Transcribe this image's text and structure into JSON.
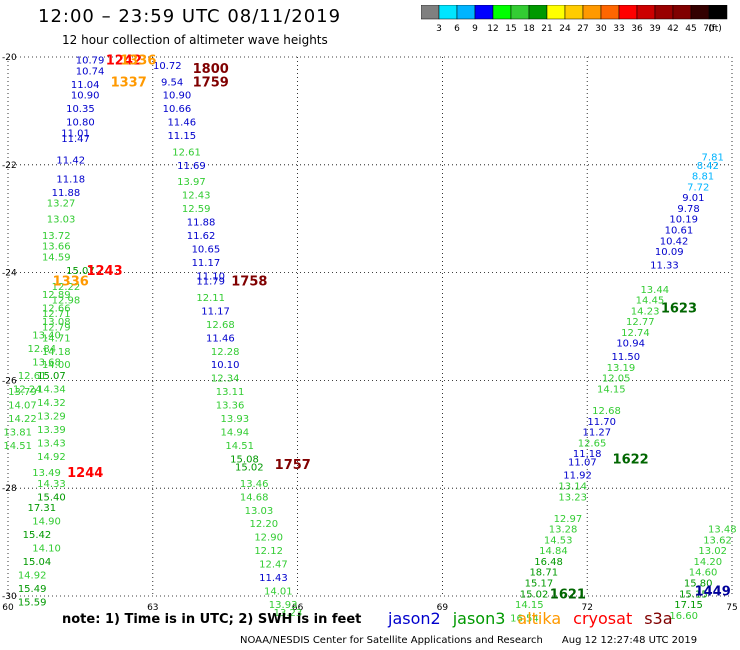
{
  "header": {
    "title": "12:00 – 23:59 UTC 08/11/2019",
    "subtitle": "12 hour collection of altimeter wave heights"
  },
  "colorbar": {
    "labels": [
      "3",
      "6",
      "9",
      "12",
      "15",
      "18",
      "21",
      "24",
      "27",
      "30",
      "33",
      "36",
      "39",
      "42",
      "45",
      "70"
    ],
    "unit": "(ft)",
    "colors": [
      "#808080",
      "#00e5ff",
      "#00b4ff",
      "#0000ff",
      "#00ff00",
      "#33cc33",
      "#009900",
      "#ffff00",
      "#ffcc00",
      "#ff9900",
      "#ff6600",
      "#ff0000",
      "#cc0000",
      "#990000",
      "#800000",
      "#330000",
      "#000000"
    ]
  },
  "map": {
    "lat_labels": [
      "-20",
      "-22",
      "-24",
      "-26",
      "-28",
      "-30"
    ],
    "lon_labels": [
      "60",
      "63",
      "66",
      "69",
      "72",
      "75"
    ],
    "lat_range": [
      -30,
      -20
    ],
    "lon_range": [
      60,
      75
    ],
    "grid_style": "dotted"
  },
  "pass_labels": [
    {
      "text": "1242",
      "lon": 62.4,
      "lat": -20.05,
      "color": "#ff0000"
    },
    {
      "text": "1336",
      "lon": 62.7,
      "lat": -20.05,
      "color": "#ff9900"
    },
    {
      "text": "1800",
      "lon": 64.2,
      "lat": -20.2,
      "color": "#800000"
    },
    {
      "text": "1337",
      "lon": 62.5,
      "lat": -20.45,
      "color": "#ff9900"
    },
    {
      "text": "1759",
      "lon": 64.2,
      "lat": -20.45,
      "color": "#800000"
    },
    {
      "text": "1243",
      "lon": 62.0,
      "lat": -23.95,
      "color": "#ff0000"
    },
    {
      "text": "1336",
      "lon": 61.3,
      "lat": -24.15,
      "color": "#ff9900"
    },
    {
      "text": "1758",
      "lon": 65.0,
      "lat": -24.15,
      "color": "#800000"
    },
    {
      "text": "1244",
      "lon": 61.6,
      "lat": -27.7,
      "color": "#ff0000"
    },
    {
      "text": "1757",
      "lon": 65.9,
      "lat": -27.55,
      "color": "#800000"
    },
    {
      "text": "1623",
      "lon": 73.9,
      "lat": -24.65,
      "color": "#006600"
    },
    {
      "text": "1622",
      "lon": 72.9,
      "lat": -27.45,
      "color": "#006600"
    },
    {
      "text": "1621",
      "lon": 71.6,
      "lat": -29.95,
      "color": "#006600"
    },
    {
      "text": "1449",
      "lon": 74.6,
      "lat": -29.9,
      "color": "#000099"
    }
  ],
  "wave_heights": [
    {
      "v": "10.79",
      "lon": 61.7,
      "lat": -20.05,
      "color": "#0000cc"
    },
    {
      "v": "10.74",
      "lon": 61.7,
      "lat": -20.25,
      "color": "#0000cc"
    },
    {
      "v": "11.04",
      "lon": 61.6,
      "lat": -20.5,
      "color": "#0000cc"
    },
    {
      "v": "10.90",
      "lon": 61.6,
      "lat": -20.7,
      "color": "#0000cc"
    },
    {
      "v": "10.35",
      "lon": 61.5,
      "lat": -20.95,
      "color": "#0000cc"
    },
    {
      "v": "10.80",
      "lon": 61.5,
      "lat": -21.2,
      "color": "#0000cc"
    },
    {
      "v": "11.01",
      "lon": 61.4,
      "lat": -21.4,
      "color": "#0000cc"
    },
    {
      "v": "11.47",
      "lon": 61.4,
      "lat": -21.5,
      "color": "#0000cc"
    },
    {
      "v": "11.42",
      "lon": 61.3,
      "lat": -21.9,
      "color": "#0000cc"
    },
    {
      "v": "11.18",
      "lon": 61.3,
      "lat": -22.25,
      "color": "#0000cc"
    },
    {
      "v": "11.88",
      "lon": 61.2,
      "lat": -22.5,
      "color": "#0000cc"
    },
    {
      "v": "13.27",
      "lon": 61.1,
      "lat": -22.7,
      "color": "#33cc33"
    },
    {
      "v": "13.03",
      "lon": 61.1,
      "lat": -23.0,
      "color": "#33cc33"
    },
    {
      "v": "13.72",
      "lon": 61.0,
      "lat": -23.3,
      "color": "#33cc33"
    },
    {
      "v": "13.66",
      "lon": 61.0,
      "lat": -23.5,
      "color": "#33cc33"
    },
    {
      "v": "14.59",
      "lon": 61.0,
      "lat": -23.7,
      "color": "#33cc33"
    },
    {
      "v": "15.07",
      "lon": 61.5,
      "lat": -23.95,
      "color": "#009900"
    },
    {
      "v": "12.22",
      "lon": 61.2,
      "lat": -24.25,
      "color": "#33cc33"
    },
    {
      "v": "12.98",
      "lon": 61.2,
      "lat": -24.5,
      "color": "#33cc33"
    },
    {
      "v": "12.71",
      "lon": 61.0,
      "lat": -24.75,
      "color": "#33cc33"
    },
    {
      "v": "12.79",
      "lon": 61.0,
      "lat": -25.0,
      "color": "#33cc33"
    },
    {
      "v": "14.71",
      "lon": 61.0,
      "lat": -25.2,
      "color": "#33cc33"
    },
    {
      "v": "14.18",
      "lon": 61.0,
      "lat": -25.45,
      "color": "#33cc33"
    },
    {
      "v": "14.00",
      "lon": 61.0,
      "lat": -25.7,
      "color": "#33cc33"
    },
    {
      "v": "15.07",
      "lon": 60.9,
      "lat": -25.9,
      "color": "#009900"
    },
    {
      "v": "14.34",
      "lon": 60.9,
      "lat": -26.15,
      "color": "#33cc33"
    },
    {
      "v": "14.32",
      "lon": 60.9,
      "lat": -26.4,
      "color": "#33cc33"
    },
    {
      "v": "13.29",
      "lon": 60.9,
      "lat": -26.65,
      "color": "#33cc33"
    },
    {
      "v": "13.39",
      "lon": 60.9,
      "lat": -26.9,
      "color": "#33cc33"
    },
    {
      "v": "13.43",
      "lon": 60.9,
      "lat": -27.15,
      "color": "#33cc33"
    },
    {
      "v": "14.92",
      "lon": 60.9,
      "lat": -27.4,
      "color": "#33cc33"
    },
    {
      "v": "14.33",
      "lon": 60.9,
      "lat": -27.9,
      "color": "#33cc33"
    },
    {
      "v": "15.40",
      "lon": 60.9,
      "lat": -28.15,
      "color": "#009900"
    },
    {
      "v": "14.90",
      "lon": 60.8,
      "lat": -28.6,
      "color": "#33cc33"
    },
    {
      "v": "14.10",
      "lon": 60.8,
      "lat": -29.1,
      "color": "#33cc33"
    },
    {
      "v": "13.79",
      "lon": 60.3,
      "lat": -26.2,
      "color": "#33cc33"
    },
    {
      "v": "14.07",
      "lon": 60.3,
      "lat": -26.45,
      "color": "#33cc33"
    },
    {
      "v": "14.22",
      "lon": 60.3,
      "lat": -26.7,
      "color": "#33cc33"
    },
    {
      "v": "13.81",
      "lon": 60.2,
      "lat": -26.95,
      "color": "#33cc33"
    },
    {
      "v": "14.51",
      "lon": 60.2,
      "lat": -27.2,
      "color": "#33cc33"
    },
    {
      "v": "13.49",
      "lon": 60.8,
      "lat": -27.7,
      "color": "#33cc33"
    },
    {
      "v": "17.31",
      "lon": 60.7,
      "lat": -28.35,
      "color": "#009900"
    },
    {
      "v": "15.42",
      "lon": 60.6,
      "lat": -28.85,
      "color": "#009900"
    },
    {
      "v": "15.04",
      "lon": 60.6,
      "lat": -29.35,
      "color": "#009900"
    },
    {
      "v": "14.92",
      "lon": 60.5,
      "lat": -29.6,
      "color": "#33cc33"
    },
    {
      "v": "15.49",
      "lon": 60.5,
      "lat": -29.85,
      "color": "#009900"
    },
    {
      "v": "15.59",
      "lon": 60.5,
      "lat": -30.1,
      "color": "#009900"
    },
    {
      "v": "12.61",
      "lon": 60.5,
      "lat": -25.9,
      "color": "#33cc33"
    },
    {
      "v": "12.24",
      "lon": 60.4,
      "lat": -26.15,
      "color": "#33cc33"
    },
    {
      "v": "13.40",
      "lon": 60.8,
      "lat": -25.15,
      "color": "#33cc33"
    },
    {
      "v": "12.84",
      "lon": 60.7,
      "lat": -25.4,
      "color": "#33cc33"
    },
    {
      "v": "13.68",
      "lon": 60.8,
      "lat": -25.65,
      "color": "#33cc33"
    },
    {
      "v": "13.08",
      "lon": 61.0,
      "lat": -24.9,
      "color": "#33cc33"
    },
    {
      "v": "12.66",
      "lon": 61.0,
      "lat": -24.65,
      "color": "#33cc33"
    },
    {
      "v": "12.89",
      "lon": 61.0,
      "lat": -24.4,
      "color": "#33cc33"
    },
    {
      "v": "10.72",
      "lon": 63.3,
      "lat": -20.15,
      "color": "#0000cc"
    },
    {
      "v": "9.54",
      "lon": 63.4,
      "lat": -20.45,
      "color": "#0000cc"
    },
    {
      "v": "10.90",
      "lon": 63.5,
      "lat": -20.7,
      "color": "#0000cc"
    },
    {
      "v": "10.66",
      "lon": 63.5,
      "lat": -20.95,
      "color": "#0000cc"
    },
    {
      "v": "11.46",
      "lon": 63.6,
      "lat": -21.2,
      "color": "#0000cc"
    },
    {
      "v": "11.15",
      "lon": 63.6,
      "lat": -21.45,
      "color": "#0000cc"
    },
    {
      "v": "12.61",
      "lon": 63.7,
      "lat": -21.75,
      "color": "#33cc33"
    },
    {
      "v": "11.69",
      "lon": 63.8,
      "lat": -22.0,
      "color": "#0000cc"
    },
    {
      "v": "13.97",
      "lon": 63.8,
      "lat": -22.3,
      "color": "#33cc33"
    },
    {
      "v": "12.43",
      "lon": 63.9,
      "lat": -22.55,
      "color": "#33cc33"
    },
    {
      "v": "12.59",
      "lon": 63.9,
      "lat": -22.8,
      "color": "#33cc33"
    },
    {
      "v": "11.88",
      "lon": 64.0,
      "lat": -23.05,
      "color": "#0000cc"
    },
    {
      "v": "11.62",
      "lon": 64.0,
      "lat": -23.3,
      "color": "#0000cc"
    },
    {
      "v": "10.65",
      "lon": 64.1,
      "lat": -23.55,
      "color": "#0000cc"
    },
    {
      "v": "11.17",
      "lon": 64.1,
      "lat": -23.8,
      "color": "#0000cc"
    },
    {
      "v": "11.10",
      "lon": 64.2,
      "lat": -24.05,
      "color": "#0000cc"
    },
    {
      "v": "11.79",
      "lon": 64.2,
      "lat": -24.15,
      "color": "#0000cc"
    },
    {
      "v": "12.11",
      "lon": 64.2,
      "lat": -24.45,
      "color": "#33cc33"
    },
    {
      "v": "11.17",
      "lon": 64.3,
      "lat": -24.7,
      "color": "#0000cc"
    },
    {
      "v": "12.68",
      "lon": 64.4,
      "lat": -24.95,
      "color": "#33cc33"
    },
    {
      "v": "11.46",
      "lon": 64.4,
      "lat": -25.2,
      "color": "#0000cc"
    },
    {
      "v": "12.28",
      "lon": 64.5,
      "lat": -25.45,
      "color": "#33cc33"
    },
    {
      "v": "10.10",
      "lon": 64.5,
      "lat": -25.7,
      "color": "#0000cc"
    },
    {
      "v": "12.34",
      "lon": 64.5,
      "lat": -25.95,
      "color": "#33cc33"
    },
    {
      "v": "13.11",
      "lon": 64.6,
      "lat": -26.2,
      "color": "#33cc33"
    },
    {
      "v": "13.36",
      "lon": 64.6,
      "lat": -26.45,
      "color": "#33cc33"
    },
    {
      "v": "13.93",
      "lon": 64.7,
      "lat": -26.7,
      "color": "#33cc33"
    },
    {
      "v": "14.94",
      "lon": 64.7,
      "lat": -26.95,
      "color": "#33cc33"
    },
    {
      "v": "14.51",
      "lon": 64.8,
      "lat": -27.2,
      "color": "#33cc33"
    },
    {
      "v": "15.08",
      "lon": 64.9,
      "lat": -27.45,
      "color": "#009900"
    },
    {
      "v": "15.02",
      "lon": 65.0,
      "lat": -27.6,
      "color": "#009900"
    },
    {
      "v": "13.46",
      "lon": 65.1,
      "lat": -27.9,
      "color": "#33cc33"
    },
    {
      "v": "14.68",
      "lon": 65.1,
      "lat": -28.15,
      "color": "#33cc33"
    },
    {
      "v": "13.03",
      "lon": 65.2,
      "lat": -28.4,
      "color": "#33cc33"
    },
    {
      "v": "12.20",
      "lon": 65.3,
      "lat": -28.65,
      "color": "#33cc33"
    },
    {
      "v": "12.90",
      "lon": 65.4,
      "lat": -28.9,
      "color": "#33cc33"
    },
    {
      "v": "12.12",
      "lon": 65.4,
      "lat": -29.15,
      "color": "#33cc33"
    },
    {
      "v": "12.47",
      "lon": 65.5,
      "lat": -29.4,
      "color": "#33cc33"
    },
    {
      "v": "11.43",
      "lon": 65.5,
      "lat": -29.65,
      "color": "#0000cc"
    },
    {
      "v": "14.01",
      "lon": 65.6,
      "lat": -29.9,
      "color": "#33cc33"
    },
    {
      "v": "13.93",
      "lon": 65.7,
      "lat": -30.15,
      "color": "#33cc33"
    },
    {
      "v": "13.23",
      "lon": 65.8,
      "lat": -30.3,
      "color": "#33cc33"
    },
    {
      "v": "7.81",
      "lon": 74.6,
      "lat": -21.85,
      "color": "#00b4ff"
    },
    {
      "v": "8.42",
      "lon": 74.5,
      "lat": -22.0,
      "color": "#00b4ff"
    },
    {
      "v": "8.81",
      "lon": 74.4,
      "lat": -22.2,
      "color": "#00b4ff"
    },
    {
      "v": "7.72",
      "lon": 74.3,
      "lat": -22.4,
      "color": "#00b4ff"
    },
    {
      "v": "9.01",
      "lon": 74.2,
      "lat": -22.6,
      "color": "#0000cc"
    },
    {
      "v": "9.78",
      "lon": 74.1,
      "lat": -22.8,
      "color": "#0000cc"
    },
    {
      "v": "10.19",
      "lon": 74.0,
      "lat": -23.0,
      "color": "#0000cc"
    },
    {
      "v": "10.61",
      "lon": 73.9,
      "lat": -23.2,
      "color": "#0000cc"
    },
    {
      "v": "10.42",
      "lon": 73.8,
      "lat": -23.4,
      "color": "#0000cc"
    },
    {
      "v": "10.09",
      "lon": 73.7,
      "lat": -23.6,
      "color": "#0000cc"
    },
    {
      "v": "11.33",
      "lon": 73.6,
      "lat": -23.85,
      "color": "#0000cc"
    },
    {
      "v": "13.44",
      "lon": 73.4,
      "lat": -24.3,
      "color": "#33cc33"
    },
    {
      "v": "14.45",
      "lon": 73.3,
      "lat": -24.5,
      "color": "#33cc33"
    },
    {
      "v": "14.23",
      "lon": 73.2,
      "lat": -24.7,
      "color": "#33cc33"
    },
    {
      "v": "12.77",
      "lon": 73.1,
      "lat": -24.9,
      "color": "#33cc33"
    },
    {
      "v": "12.74",
      "lon": 73.0,
      "lat": -25.1,
      "color": "#33cc33"
    },
    {
      "v": "10.94",
      "lon": 72.9,
      "lat": -25.3,
      "color": "#0000cc"
    },
    {
      "v": "11.50",
      "lon": 72.8,
      "lat": -25.55,
      "color": "#0000cc"
    },
    {
      "v": "13.19",
      "lon": 72.7,
      "lat": -25.75,
      "color": "#33cc33"
    },
    {
      "v": "12.05",
      "lon": 72.6,
      "lat": -25.95,
      "color": "#33cc33"
    },
    {
      "v": "14.15",
      "lon": 72.5,
      "lat": -26.15,
      "color": "#33cc33"
    },
    {
      "v": "12.68",
      "lon": 72.4,
      "lat": -26.55,
      "color": "#33cc33"
    },
    {
      "v": "11.70",
      "lon": 72.3,
      "lat": -26.75,
      "color": "#0000cc"
    },
    {
      "v": "11.27",
      "lon": 72.2,
      "lat": -26.95,
      "color": "#0000cc"
    },
    {
      "v": "12.65",
      "lon": 72.1,
      "lat": -27.15,
      "color": "#33cc33"
    },
    {
      "v": "11.18",
      "lon": 72.0,
      "lat": -27.35,
      "color": "#0000cc"
    },
    {
      "v": "11.07",
      "lon": 71.9,
      "lat": -27.5,
      "color": "#0000cc"
    },
    {
      "v": "11.92",
      "lon": 71.8,
      "lat": -27.75,
      "color": "#0000cc"
    },
    {
      "v": "13.14",
      "lon": 71.7,
      "lat": -27.95,
      "color": "#33cc33"
    },
    {
      "v": "13.23",
      "lon": 71.7,
      "lat": -28.15,
      "color": "#33cc33"
    },
    {
      "v": "12.97",
      "lon": 71.6,
      "lat": -28.55,
      "color": "#33cc33"
    },
    {
      "v": "13.28",
      "lon": 71.5,
      "lat": -28.75,
      "color": "#33cc33"
    },
    {
      "v": "14.53",
      "lon": 71.4,
      "lat": -28.95,
      "color": "#33cc33"
    },
    {
      "v": "14.84",
      "lon": 71.3,
      "lat": -29.15,
      "color": "#33cc33"
    },
    {
      "v": "16.48",
      "lon": 71.2,
      "lat": -29.35,
      "color": "#009900"
    },
    {
      "v": "18.71",
      "lon": 71.1,
      "lat": -29.55,
      "color": "#009900"
    },
    {
      "v": "15.17",
      "lon": 71.0,
      "lat": -29.75,
      "color": "#009900"
    },
    {
      "v": "15.02",
      "lon": 70.9,
      "lat": -29.95,
      "color": "#009900"
    },
    {
      "v": "14.15",
      "lon": 70.8,
      "lat": -30.15,
      "color": "#33cc33"
    },
    {
      "v": "16.54",
      "lon": 70.7,
      "lat": -30.4,
      "color": "#33cc33"
    },
    {
      "v": "13.48",
      "lon": 74.8,
      "lat": -28.75,
      "color": "#33cc33"
    },
    {
      "v": "13.62",
      "lon": 74.7,
      "lat": -28.95,
      "color": "#33cc33"
    },
    {
      "v": "13.02",
      "lon": 74.6,
      "lat": -29.15,
      "color": "#33cc33"
    },
    {
      "v": "14.20",
      "lon": 74.5,
      "lat": -29.35,
      "color": "#33cc33"
    },
    {
      "v": "14.60",
      "lon": 74.4,
      "lat": -29.55,
      "color": "#33cc33"
    },
    {
      "v": "15.80",
      "lon": 74.3,
      "lat": -29.75,
      "color": "#009900"
    },
    {
      "v": "15.15",
      "lon": 74.2,
      "lat": -29.95,
      "color": "#009900"
    },
    {
      "v": "17.15",
      "lon": 74.1,
      "lat": -30.15,
      "color": "#009900"
    },
    {
      "v": "16.60",
      "lon": 74.0,
      "lat": -30.35,
      "color": "#33cc33"
    }
  ],
  "note": "note: 1) Time is in UTC; 2) SWH is in feet",
  "legend": [
    {
      "label": "jason2",
      "color": "#0000cc"
    },
    {
      "label": "jason3",
      "color": "#009900"
    },
    {
      "label": "altika",
      "color": "#ff9900"
    },
    {
      "label": "cryosat",
      "color": "#ff0000"
    },
    {
      "label": "s3a",
      "color": "#800000"
    }
  ],
  "footer": "NOAA/NESDIS Center for Satellite Applications and Research      Aug 12 12:27:48 UTC 2019"
}
